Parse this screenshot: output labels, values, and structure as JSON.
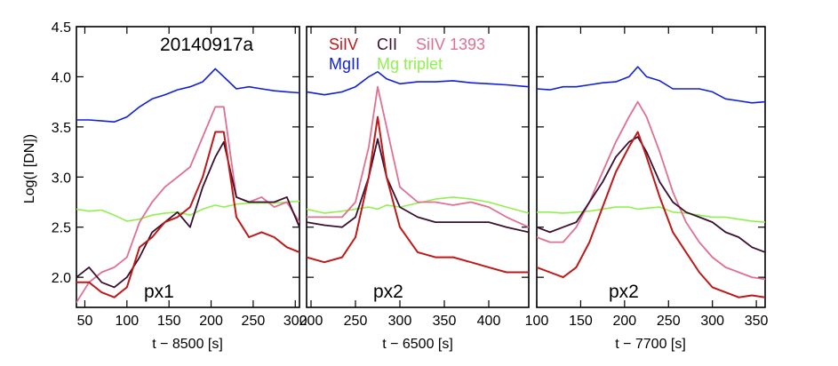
{
  "chart_data": {
    "type": "line",
    "title": "20140917a",
    "ylabel": "Log(I [DN])",
    "ylim": [
      1.7,
      4.5
    ],
    "yticks": [
      "2.0",
      "2.5",
      "3.0",
      "3.5",
      "4.0",
      "4.5"
    ],
    "ytick_values": [
      2.0,
      2.5,
      3.0,
      3.5,
      4.0,
      4.5
    ],
    "colors": {
      "SiIV": "#c01818",
      "CII": "#3a0f30",
      "SiIV1393": "#e07090",
      "MgII": "#1020d8",
      "Mgtriplet": "#90f050"
    },
    "legend": [
      {
        "key": "SiIV",
        "label": "SiIV"
      },
      {
        "key": "CII",
        "label": "CII"
      },
      {
        "key": "SiIV1393",
        "label": "SiIV 1393"
      },
      {
        "key": "MgII",
        "label": "MgII"
      },
      {
        "key": "Mgtriplet",
        "label": "Mg triplet"
      }
    ],
    "panels": [
      {
        "xlabel": "t − 8500 [s]",
        "annotation": "px1",
        "xlim": [
          40,
          305
        ],
        "xticks": [
          50,
          100,
          150,
          200,
          250,
          300
        ],
        "x": [
          40,
          55,
          70,
          85,
          100,
          115,
          130,
          145,
          160,
          175,
          190,
          205,
          215,
          230,
          245,
          260,
          275,
          290,
          305
        ],
        "series": {
          "MgII": [
            3.57,
            3.57,
            3.56,
            3.55,
            3.6,
            3.7,
            3.78,
            3.82,
            3.87,
            3.9,
            3.95,
            4.08,
            4.0,
            3.88,
            3.9,
            3.88,
            3.86,
            3.85,
            3.84
          ],
          "Mgtriplet": [
            2.68,
            2.66,
            2.67,
            2.62,
            2.56,
            2.58,
            2.62,
            2.64,
            2.65,
            2.62,
            2.68,
            2.72,
            2.7,
            2.73,
            2.74,
            2.74,
            2.74,
            2.75,
            2.76
          ],
          "SiIV1393": [
            1.75,
            1.95,
            2.05,
            2.1,
            2.2,
            2.55,
            2.75,
            2.9,
            3.0,
            3.1,
            3.4,
            3.7,
            3.7,
            2.8,
            2.75,
            2.8,
            2.7,
            2.75,
            2.55
          ],
          "CII": [
            2.0,
            2.1,
            1.95,
            1.9,
            2.0,
            2.2,
            2.45,
            2.55,
            2.65,
            2.5,
            2.9,
            3.2,
            3.35,
            2.8,
            2.75,
            2.75,
            2.75,
            2.8,
            2.5
          ],
          "SiIV": [
            1.95,
            1.95,
            1.85,
            1.8,
            1.9,
            2.3,
            2.4,
            2.55,
            2.6,
            2.7,
            3.0,
            3.45,
            3.45,
            2.6,
            2.4,
            2.45,
            2.4,
            2.3,
            2.25
          ]
        }
      },
      {
        "xlabel": "t − 6500 [s]",
        "annotation": "px2",
        "xlim": [
          195,
          445
        ],
        "xticks": [
          200,
          250,
          300,
          350,
          400
        ],
        "x": [
          195,
          215,
          235,
          250,
          265,
          275,
          285,
          300,
          320,
          340,
          360,
          380,
          400,
          420,
          445
        ],
        "series": {
          "MgII": [
            3.85,
            3.82,
            3.85,
            3.9,
            4.0,
            4.05,
            3.98,
            3.93,
            3.95,
            3.95,
            3.96,
            3.94,
            3.93,
            3.92,
            3.9
          ],
          "Mgtriplet": [
            2.68,
            2.64,
            2.66,
            2.68,
            2.7,
            2.68,
            2.72,
            2.7,
            2.74,
            2.78,
            2.8,
            2.78,
            2.75,
            2.7,
            2.64
          ],
          "SiIV1393": [
            2.6,
            2.6,
            2.6,
            2.75,
            3.3,
            3.9,
            3.5,
            2.9,
            2.75,
            2.75,
            2.72,
            2.75,
            2.7,
            2.6,
            2.5
          ],
          "CII": [
            2.55,
            2.52,
            2.5,
            2.6,
            3.0,
            3.38,
            3.0,
            2.7,
            2.6,
            2.55,
            2.55,
            2.55,
            2.55,
            2.5,
            2.45
          ],
          "SiIV": [
            2.2,
            2.15,
            2.2,
            2.4,
            3.0,
            3.6,
            3.0,
            2.5,
            2.25,
            2.2,
            2.2,
            2.15,
            2.1,
            2.05,
            2.05
          ]
        }
      },
      {
        "xlabel": "t − 7700 [s]",
        "annotation": "px2",
        "xlim": [
          100,
          360
        ],
        "xticks": [
          100,
          150,
          200,
          250,
          300,
          350
        ],
        "x": [
          100,
          115,
          130,
          145,
          160,
          175,
          190,
          205,
          215,
          225,
          240,
          255,
          270,
          285,
          300,
          315,
          330,
          345,
          360
        ],
        "series": {
          "MgII": [
            3.88,
            3.87,
            3.9,
            3.9,
            3.92,
            3.94,
            3.95,
            4.0,
            4.1,
            4.0,
            3.96,
            3.88,
            3.88,
            3.88,
            3.85,
            3.78,
            3.76,
            3.74,
            3.75
          ],
          "Mgtriplet": [
            2.65,
            2.65,
            2.64,
            2.65,
            2.66,
            2.68,
            2.7,
            2.7,
            2.68,
            2.69,
            2.7,
            2.65,
            2.64,
            2.62,
            2.6,
            2.6,
            2.58,
            2.56,
            2.55
          ],
          "SiIV1393": [
            2.4,
            2.35,
            2.35,
            2.5,
            2.75,
            3.05,
            3.35,
            3.6,
            3.75,
            3.6,
            3.25,
            2.85,
            2.55,
            2.35,
            2.2,
            2.1,
            2.05,
            2.0,
            1.98
          ],
          "CII": [
            2.5,
            2.45,
            2.5,
            2.55,
            2.75,
            2.95,
            3.2,
            3.35,
            3.4,
            3.25,
            2.95,
            2.75,
            2.65,
            2.6,
            2.55,
            2.45,
            2.4,
            2.3,
            2.25
          ],
          "SiIV": [
            2.1,
            2.05,
            2.0,
            2.1,
            2.35,
            2.7,
            3.05,
            3.3,
            3.45,
            3.2,
            2.8,
            2.45,
            2.25,
            2.05,
            1.9,
            1.85,
            1.8,
            1.82,
            1.8
          ]
        }
      }
    ]
  }
}
